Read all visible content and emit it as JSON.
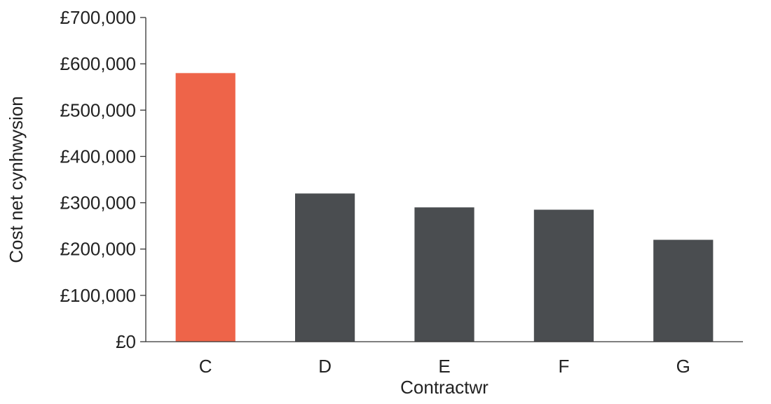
{
  "chart_data": {
    "type": "bar",
    "title": "",
    "xlabel": "Contractwr",
    "ylabel": "Cost net cynhwysion",
    "categories": [
      "C",
      "D",
      "E",
      "F",
      "G"
    ],
    "values": [
      580000,
      320000,
      290000,
      285000,
      220000
    ],
    "bar_colors": [
      "#EE6449",
      "#4A4D50",
      "#4A4D50",
      "#4A4D50",
      "#4A4D50"
    ],
    "ylim": [
      0,
      700000
    ],
    "yticks": [
      0,
      100000,
      200000,
      300000,
      400000,
      500000,
      600000,
      700000
    ],
    "ytick_labels": [
      "£0",
      "£100,000",
      "£200,000",
      "£300,000",
      "£400,000",
      "£500,000",
      "£600,000",
      "£700,000"
    ],
    "grid": false,
    "legend": "none"
  }
}
